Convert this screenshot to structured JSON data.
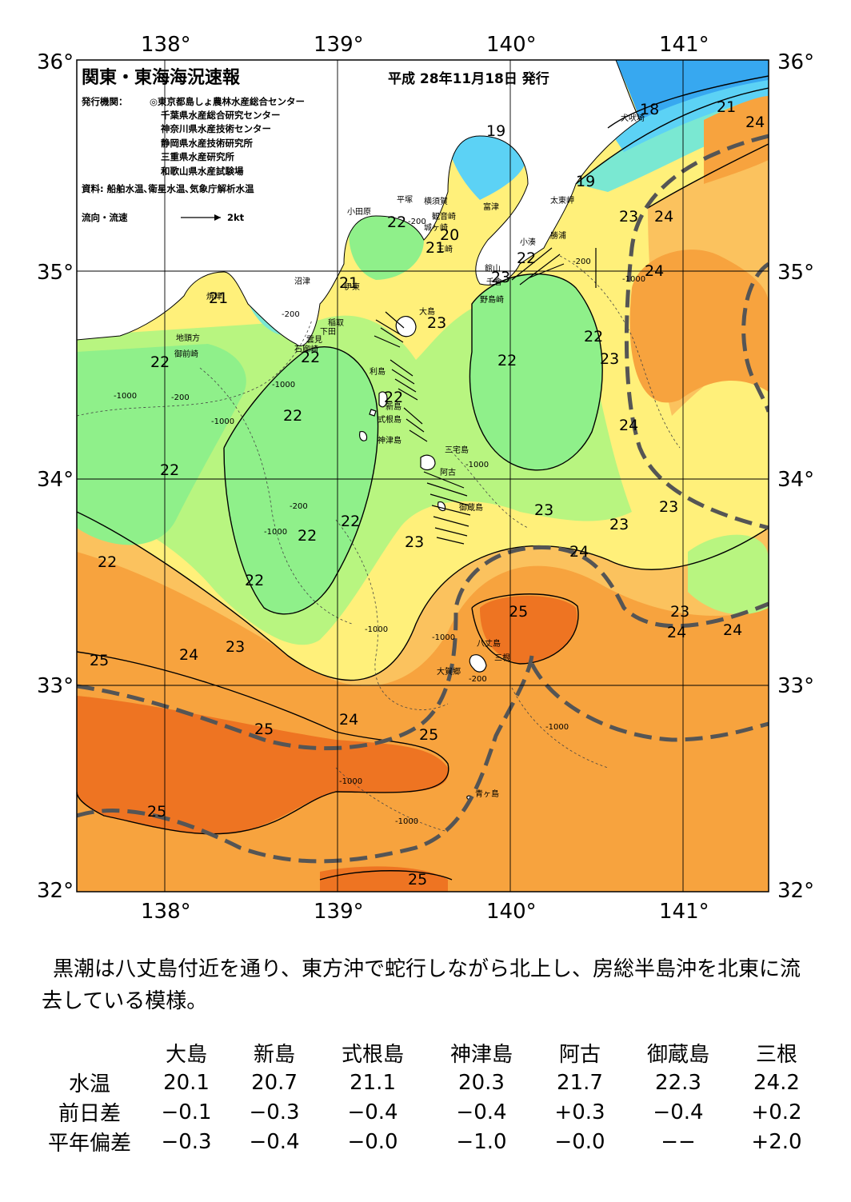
{
  "header": {
    "title": "関東・東海海況速報",
    "issue_date": "平成 28年11月18日 発行",
    "publishers_label": "発行機関：",
    "publishers": [
      "◎東京都島しょ農林水産総合センター",
      "千葉県水産総合研究センター",
      "神奈川県水産技術センター",
      "静岡県水産技術研究所",
      "三重県水産研究所",
      "和歌山県水産試験場"
    ],
    "sources": "資料: 船舶水温､衛星水温､気象庁解析水温",
    "legend_label": "流向・流速",
    "legend_scale": "2kt"
  },
  "axes": {
    "lat_left": [
      "36°",
      "35°",
      "34°",
      "33°",
      "32°"
    ],
    "lat_right": [
      "36°",
      "35°",
      "34°",
      "33°",
      "32°"
    ],
    "lon_top": [
      "138°",
      "139°",
      "140°",
      "141°"
    ],
    "lon_bottom": [
      "138°",
      "139°",
      "140°",
      "141°"
    ]
  },
  "places": {
    "oshima": "大島",
    "niijima": "新島",
    "shikinejima": "式根島",
    "kozushima": "神津島",
    "miyakejima": "三宅島",
    "ako": "阿古",
    "mikurajima": "御蔵島",
    "hachijojima": "八丈島",
    "mine": "三根",
    "okago": "大賀郷",
    "aogashima": "青ヶ島",
    "toshima": "利島",
    "inubosaki": "犬吠埼",
    "taitomisaki": "太東岬",
    "katsuura": "勝浦",
    "kominato": "小湊",
    "tateyama": "館山",
    "chikura": "千倉",
    "nojimazaki": "野島崎",
    "futtsu": "富津",
    "kannonzaki": "観音崎",
    "yokosuka": "横須賀",
    "hiratsuka": "平塚",
    "jogasaki": "城ヶ崎",
    "odawara": "小田原",
    "ito": "伊東",
    "numazu": "沼津",
    "inatori": "稲取",
    "shimoda": "下田",
    "iromisaki": "石廊崎",
    "mikumo": "雲見",
    "yaizu": "焼津",
    "omaezaki": "御前崎",
    "jitokata": "地頭方",
    "miura": "三崎"
  },
  "depth_labels": [
    "-200",
    "-1000"
  ],
  "isotherm_labels": {
    "t18": "18",
    "t19": "19",
    "t20": "20",
    "t21": "21",
    "t22": "22",
    "t23": "23",
    "t24": "24",
    "t25": "25"
  },
  "summary": "黒潮は八丈島付近を通り、東方沖で蛇行しながら北上し、房総半島沖を北東に流去している模様。",
  "stations": {
    "names": [
      "大島",
      "新島",
      "式根島",
      "神津島",
      "阿古",
      "御蔵島",
      "三根"
    ],
    "rows": [
      {
        "label": "水温",
        "values": [
          "20.1",
          "20.7",
          "21.1",
          "20.3",
          "21.7",
          "22.3",
          "24.2"
        ]
      },
      {
        "label": "前日差",
        "values": [
          "−0.1",
          "−0.3",
          "−0.4",
          "−0.4",
          "+0.3",
          "−0.4",
          "+0.2"
        ]
      },
      {
        "label": "平年偏差",
        "values": [
          "−0.3",
          "−0.4",
          "−0.0",
          "−1.0",
          "−0.0",
          "−−",
          "+2.0"
        ]
      }
    ]
  },
  "colors": {
    "t18_19": "#37a8f0",
    "t19_20": "#5cd2f5",
    "t20_21": "#7ae8d2",
    "t21_22": "#8ff08a",
    "t22_23": "#b8f580",
    "t23_24": "#fff07a",
    "t24_25": "#fbc25e",
    "t25_26": "#f7a33e",
    "t26": "#ee7422",
    "land": "#ffffff",
    "kuroshio_axis": "#555555"
  }
}
